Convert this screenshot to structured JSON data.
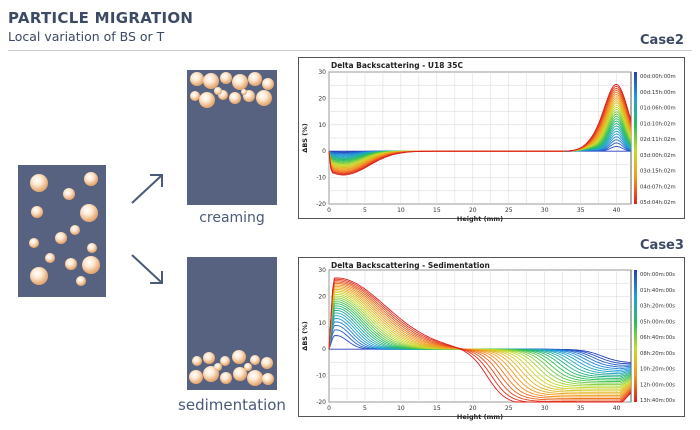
{
  "header": {
    "title": "PARTICLE MIGRATION",
    "subtitle": "Local variation of BS or T"
  },
  "cases": {
    "case2_label": "Case2",
    "case3_label": "Case3"
  },
  "captions": {
    "creaming": "creaming",
    "sedimentation": "sedimentation"
  },
  "colors": {
    "vial": "#56627f",
    "particle": "#f3cfa8",
    "text": "#3c4a64"
  },
  "chart_data": [
    {
      "type": "line",
      "title": "Delta Backscattering - U18 35C",
      "xlabel": "Height (mm)",
      "ylabel": "ΔBS (%)",
      "xlim": [
        0,
        42
      ],
      "ylim": [
        -20,
        30
      ],
      "x_ticks": [
        "0",
        "5",
        "10",
        "15",
        "20",
        "25",
        "30",
        "35",
        "40"
      ],
      "y_ticks": [
        "30",
        "20",
        "10",
        "0",
        "-10",
        "-20"
      ],
      "legend": [
        "00d:00h:00m",
        "00d:15h:00m",
        "01d:06h:00m",
        "01d:10h:02m",
        "02d:11h:02m",
        "03d:00h:02m",
        "03d:15h:02m",
        "04d:07h:02m",
        "05d:04h:02m"
      ],
      "series_summary": {
        "bottom_min_at_x": 2,
        "bottom_min_value": -9,
        "top_peak_at_x": 40,
        "top_peak_value": 25
      }
    },
    {
      "type": "line",
      "title": "Delta Backscattering - Sedimentation",
      "xlabel": "Height (mm)",
      "ylabel": "ΔBS (%)",
      "xlim": [
        0,
        42
      ],
      "ylim": [
        -20,
        30
      ],
      "x_ticks": [
        "0",
        "5",
        "10",
        "15",
        "20",
        "25",
        "30",
        "35",
        "40"
      ],
      "y_ticks": [
        "30",
        "20",
        "10",
        "0",
        "-10",
        "-20"
      ],
      "legend": [
        "00h:00m:00s",
        "01h:40m:00s",
        "03h:20m:00s",
        "05h:00m:00s",
        "06h:40m:00s",
        "08h:20m:00s",
        "10h:20m:00s",
        "12h:00m:00s",
        "13h:40m:00s"
      ],
      "series_summary": {
        "bottom_peak_at_x": 1,
        "bottom_peak_value": 27,
        "top_min_value": -21,
        "front_start_x": 22,
        "front_end_x": 38
      }
    }
  ]
}
